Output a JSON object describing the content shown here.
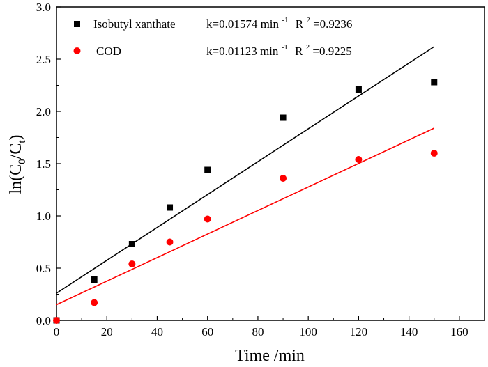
{
  "chart_data": {
    "type": "scatter",
    "xlabel": "Time /min",
    "ylabel": {
      "base": "ln(C",
      "sub0": "0",
      "mid": "/C",
      "subt": "t",
      "end": ")"
    },
    "xlim": [
      0,
      170
    ],
    "ylim": [
      0.0,
      3.0
    ],
    "x_ticks": [
      0,
      20,
      40,
      60,
      80,
      100,
      120,
      140,
      160
    ],
    "y_ticks": [
      0.0,
      0.5,
      1.0,
      1.5,
      2.0,
      2.5,
      3.0
    ],
    "x_tick_labels": [
      "0",
      "20",
      "40",
      "60",
      "80",
      "100",
      "120",
      "140",
      "160"
    ],
    "y_tick_labels": [
      "0.0",
      "0.5",
      "1.0",
      "1.5",
      "2.0",
      "2.5",
      "3.0"
    ],
    "series": [
      {
        "name": "Isobutyl xanthate",
        "marker": "square",
        "color": "#000000",
        "x": [
          0,
          15,
          30,
          45,
          60,
          90,
          120,
          150
        ],
        "y": [
          0.0,
          0.39,
          0.73,
          1.08,
          1.44,
          1.94,
          2.21,
          2.28
        ],
        "fit": {
          "intercept": 0.26,
          "x_range": [
            0,
            150
          ],
          "y_end": 2.62
        },
        "legend": {
          "label": "Isobutyl xanthate",
          "k_text": "k=0.01574 min",
          "k_sup": "-1",
          "r2_prefix": "R",
          "r2_sup": "2",
          "r2_value": "=0.9236"
        }
      },
      {
        "name": "COD",
        "marker": "circle",
        "color": "#ff0000",
        "x": [
          0,
          15,
          30,
          45,
          60,
          90,
          120,
          150
        ],
        "y": [
          0.0,
          0.17,
          0.54,
          0.75,
          0.97,
          1.36,
          1.54,
          1.6
        ],
        "fit": {
          "intercept": 0.15,
          "x_range": [
            0,
            150
          ],
          "y_end": 1.84
        },
        "legend": {
          "label": "COD",
          "k_text": "k=0.01123 min",
          "k_sup": "-1",
          "r2_prefix": "R",
          "r2_sup": "2",
          "r2_value": "=0.9225"
        }
      }
    ],
    "legend_position": "top-left"
  }
}
